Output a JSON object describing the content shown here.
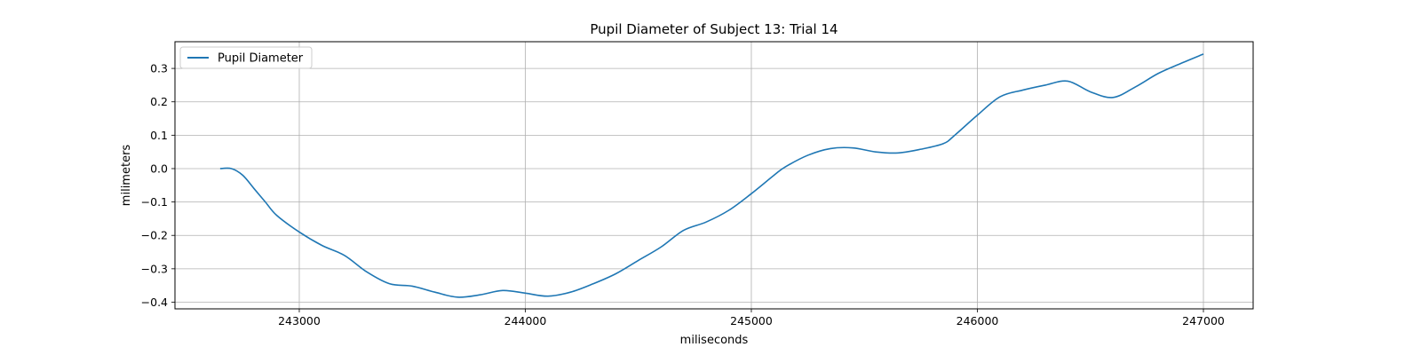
{
  "chart_data": {
    "type": "line",
    "title": "Pupil Diameter of Subject 13: Trial 14",
    "xlabel": "miliseconds",
    "ylabel": "milimeters",
    "xlim": [
      242450,
      247220
    ],
    "ylim": [
      -0.42,
      0.38
    ],
    "xticks": [
      243000,
      244000,
      245000,
      246000,
      247000
    ],
    "yticks": [
      -0.4,
      -0.3,
      -0.2,
      -0.1,
      0.0,
      0.1,
      0.2,
      0.3
    ],
    "grid": true,
    "legend_position": "top-left",
    "line_color": "#1f77b4",
    "series": [
      {
        "name": "Pupil Diameter",
        "x": [
          242650,
          242700,
          242750,
          242800,
          242850,
          242900,
          243000,
          243100,
          243200,
          243300,
          243400,
          243500,
          243600,
          243700,
          243800,
          243900,
          244000,
          244100,
          244200,
          244300,
          244400,
          244500,
          244600,
          244700,
          244800,
          244900,
          245000,
          245100,
          245150,
          245250,
          245350,
          245450,
          245550,
          245650,
          245750,
          245850,
          245900,
          246000,
          246100,
          246200,
          246300,
          246400,
          246500,
          246600,
          246700,
          246800,
          246900,
          247000
        ],
        "y": [
          0.0,
          0.0,
          -0.02,
          -0.06,
          -0.1,
          -0.14,
          -0.19,
          -0.23,
          -0.26,
          -0.31,
          -0.345,
          -0.352,
          -0.37,
          -0.385,
          -0.378,
          -0.365,
          -0.373,
          -0.382,
          -0.37,
          -0.345,
          -0.315,
          -0.275,
          -0.235,
          -0.185,
          -0.16,
          -0.125,
          -0.075,
          -0.02,
          0.005,
          0.04,
          0.06,
          0.062,
          0.05,
          0.047,
          0.058,
          0.075,
          0.1,
          0.16,
          0.215,
          0.235,
          0.25,
          0.262,
          0.23,
          0.213,
          0.245,
          0.285,
          0.315,
          0.343
        ]
      }
    ]
  }
}
